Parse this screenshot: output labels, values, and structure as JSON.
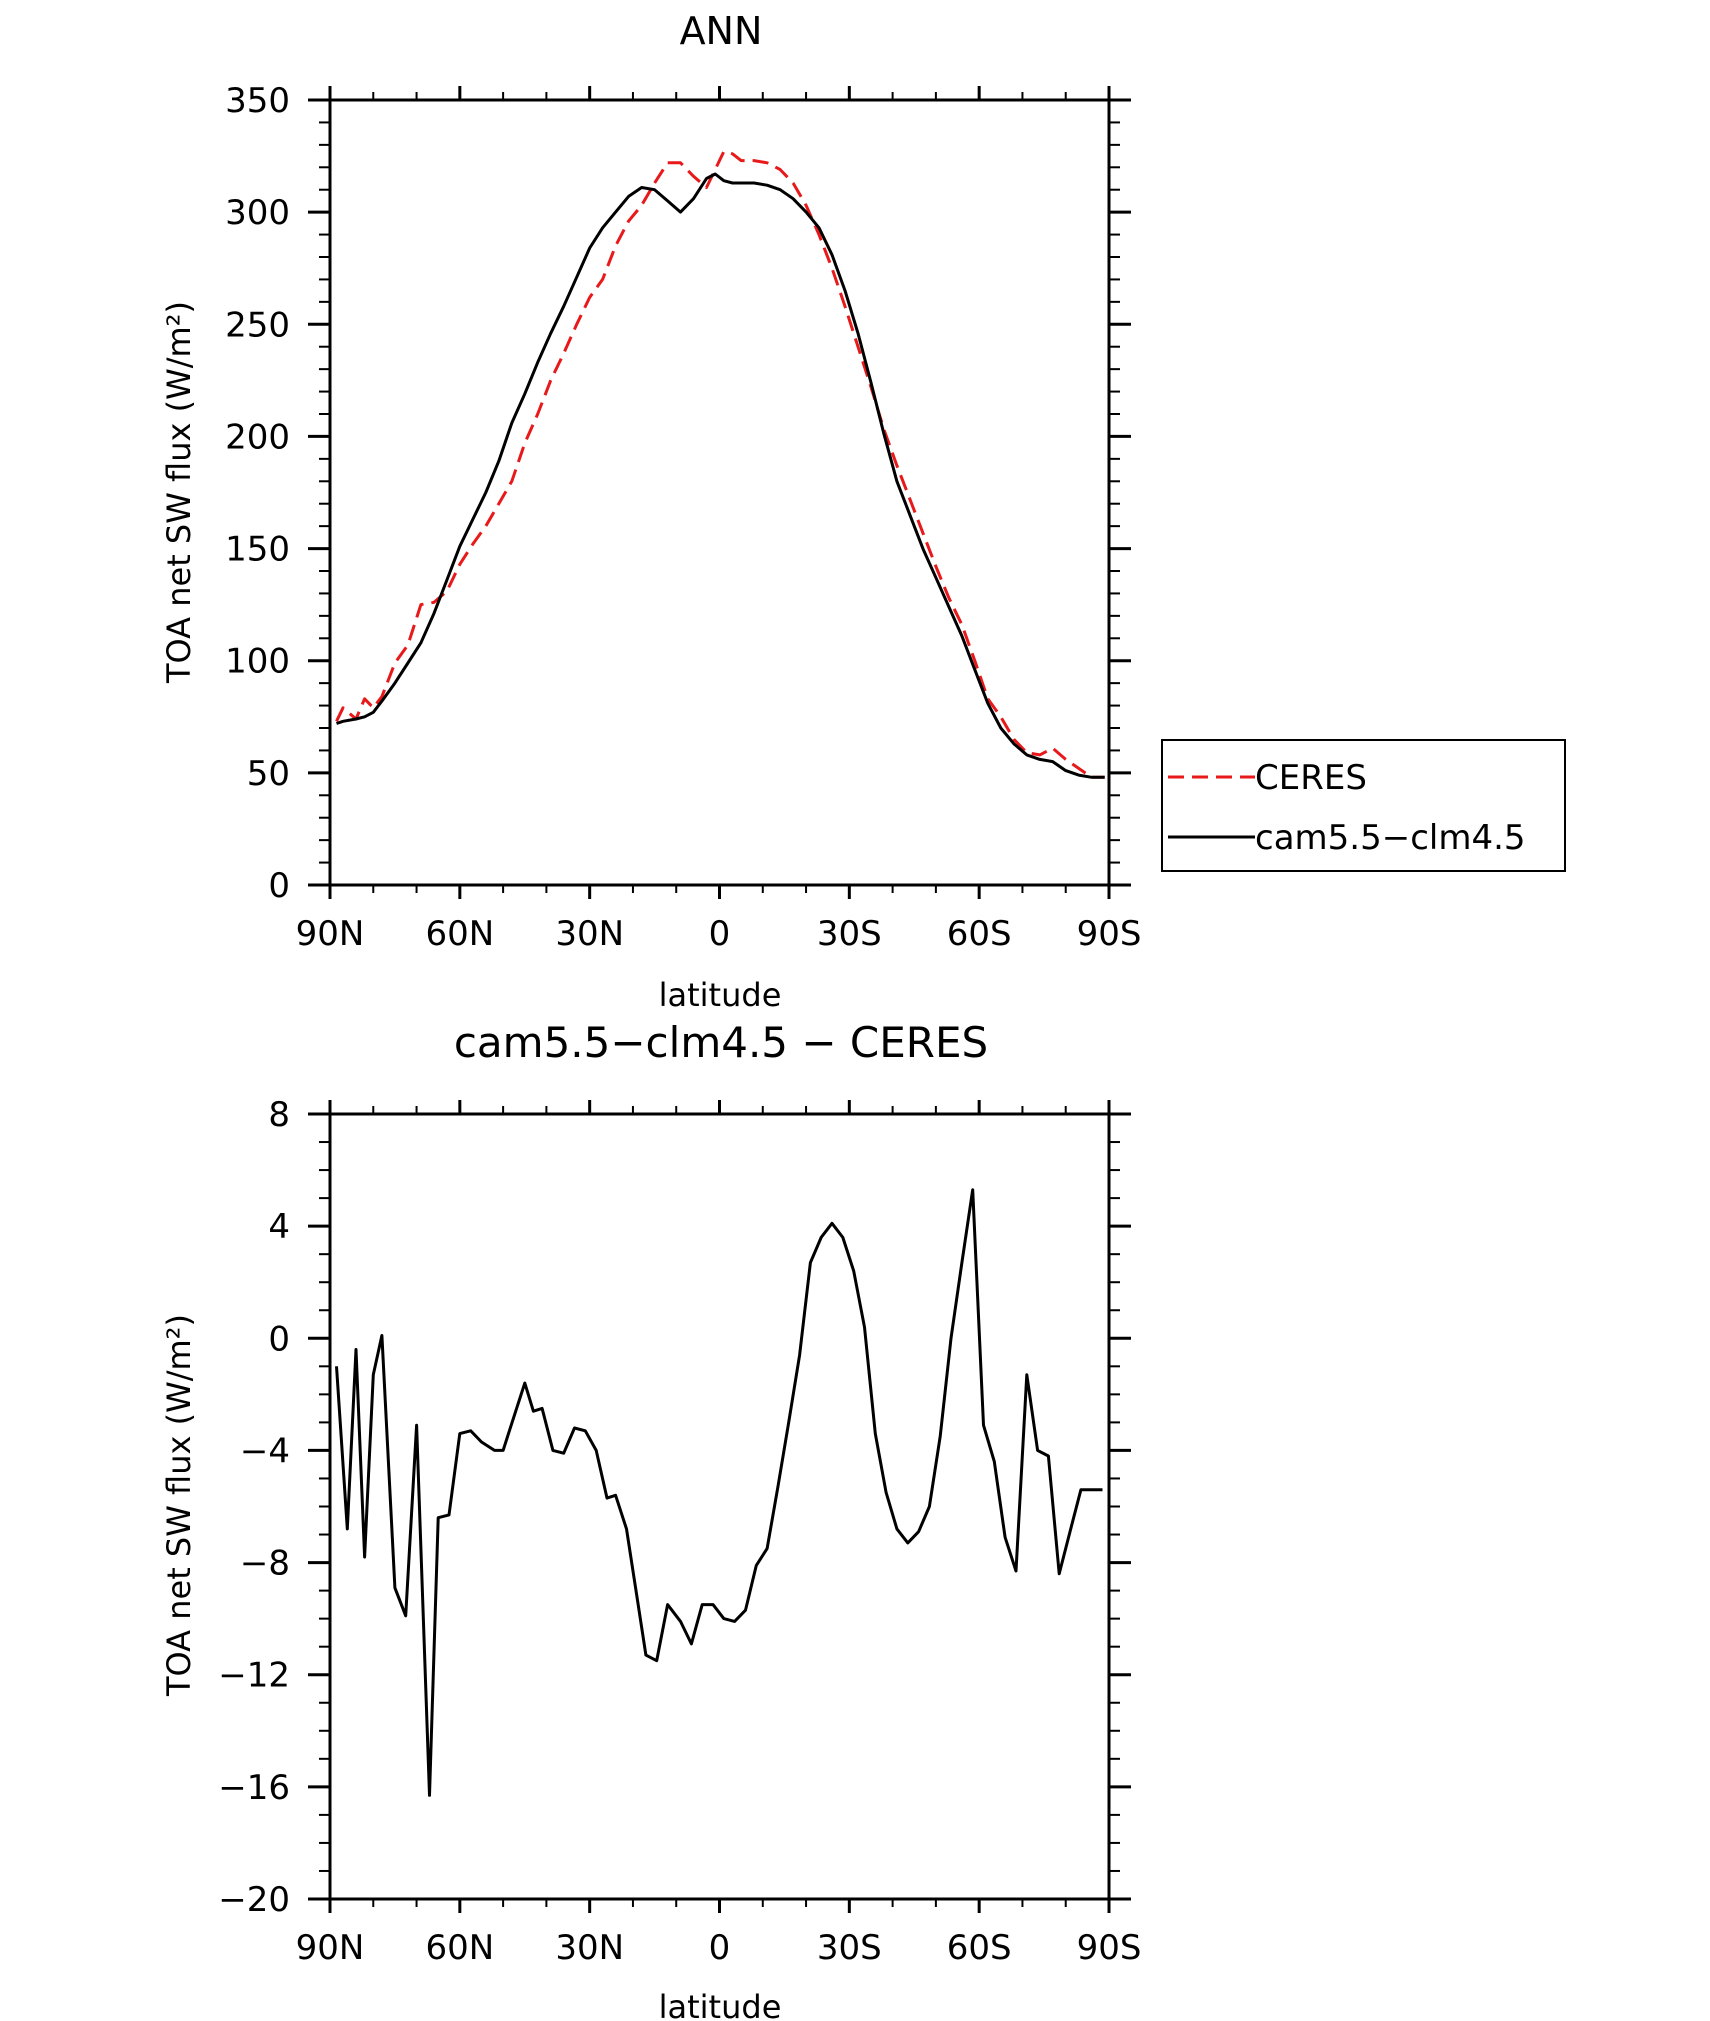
{
  "chart_data": [
    {
      "type": "line",
      "title": "ANN",
      "xlabel": "latitude",
      "ylabel": "TOA net SW flux (W/m²)",
      "x_ticks": [
        "90N",
        "60N",
        "30N",
        "0",
        "30S",
        "60S",
        "90S"
      ],
      "x_tick_values": [
        90,
        60,
        30,
        0,
        -30,
        -60,
        -90
      ],
      "y_ticks": [
        "0",
        "50",
        "100",
        "150",
        "200",
        "250",
        "300",
        "350"
      ],
      "y_tick_values": [
        0,
        50,
        100,
        150,
        200,
        250,
        300,
        350
      ],
      "xlim": [
        90,
        -90
      ],
      "ylim": [
        0,
        350
      ],
      "legend_placement": "right",
      "series": [
        {
          "name": "CERES",
          "color": "#e8191a",
          "dash": "dashed",
          "x": [
            88.5,
            87,
            84,
            82,
            80,
            78,
            75,
            72,
            69,
            66,
            63,
            60,
            57,
            54,
            51,
            48,
            45,
            42,
            39,
            36,
            33,
            30,
            27,
            24,
            21,
            18,
            15,
            12,
            9,
            6,
            3,
            1,
            -1,
            -3,
            -5,
            -8,
            -11,
            -14,
            -17,
            -20,
            -23,
            -26,
            -29,
            -32,
            -35,
            -38,
            -41,
            -44,
            -47,
            -50,
            -53,
            -56,
            -59,
            -62,
            -65,
            -68,
            -71,
            -74,
            -77,
            -80,
            -83,
            -86,
            -89
          ],
          "y": [
            73,
            79,
            74,
            83,
            79,
            84,
            99,
            107,
            125,
            126,
            131,
            143,
            152,
            160,
            170,
            180,
            197,
            210,
            225,
            237,
            250,
            262,
            270,
            285,
            296,
            303,
            313,
            322,
            322,
            316,
            311,
            319,
            327,
            326,
            323,
            323,
            322,
            319,
            313,
            303,
            290,
            275,
            258,
            240,
            222,
            203,
            187,
            172,
            157,
            142,
            128,
            116,
            100,
            83,
            75,
            65,
            59,
            58,
            61,
            56,
            52,
            48,
            48
          ]
        },
        {
          "name": "cam5.5−clm4.5",
          "color": "#000000",
          "dash": "solid",
          "x": [
            88.5,
            87,
            84,
            82,
            80,
            78,
            75,
            72,
            69,
            66,
            63,
            60,
            57,
            54,
            51,
            48,
            45,
            42,
            39,
            36,
            33,
            30,
            27,
            24,
            21,
            18,
            15,
            12,
            9,
            6,
            3,
            1,
            -1,
            -3,
            -5,
            -8,
            -11,
            -14,
            -17,
            -20,
            -23,
            -26,
            -29,
            -32,
            -35,
            -38,
            -41,
            -44,
            -47,
            -50,
            -53,
            -56,
            -59,
            -62,
            -65,
            -68,
            -71,
            -74,
            -77,
            -80,
            -83,
            -86,
            -89
          ],
          "y": [
            72,
            73,
            74,
            75,
            77,
            82,
            90,
            99,
            108,
            121,
            136,
            151,
            163,
            175,
            189,
            206,
            219,
            233,
            246,
            258,
            271,
            284,
            293,
            300,
            307,
            311,
            310,
            305,
            300,
            306,
            315,
            317,
            314,
            313,
            313,
            313,
            312,
            310,
            306,
            300,
            293,
            281,
            265,
            246,
            224,
            201,
            180,
            165,
            150,
            137,
            124,
            111,
            96,
            81,
            70,
            63,
            58,
            56,
            55,
            51,
            49,
            48,
            48
          ]
        }
      ]
    },
    {
      "type": "line",
      "title": "cam5.5−clm4.5 − CERES",
      "xlabel": "latitude",
      "ylabel": "TOA net SW flux (W/m²)",
      "x_ticks": [
        "90N",
        "60N",
        "30N",
        "0",
        "30S",
        "60S",
        "90S"
      ],
      "x_tick_values": [
        90,
        60,
        30,
        0,
        -30,
        -60,
        -90
      ],
      "y_ticks": [
        "8",
        "4",
        "0",
        "−4",
        "−8",
        "−12",
        "−16",
        "−20"
      ],
      "y_tick_values": [
        8,
        4,
        0,
        -4,
        -8,
        -12,
        -16,
        -20
      ],
      "xlim": [
        90,
        -90
      ],
      "ylim": [
        -20,
        8
      ],
      "series": [
        {
          "color": "#000000",
          "x": [
            88.5,
            86,
            84,
            82,
            80,
            78,
            75,
            72.5,
            70,
            67,
            65,
            62.5,
            60,
            57.5,
            55,
            52,
            50,
            47.5,
            45,
            43,
            41,
            38.5,
            36,
            33.5,
            31,
            28.5,
            26,
            24,
            21.5,
            19,
            17,
            14.5,
            12,
            9,
            6.5,
            4,
            1.5,
            -1,
            -3.5,
            -6,
            -8.5,
            -11,
            -13.5,
            -16,
            -18.5,
            -21,
            -23.5,
            -26,
            -28.5,
            -31,
            -33.5,
            -36,
            -38.5,
            -41,
            -43.5,
            -46,
            -48.5,
            -51,
            -53.5,
            -56,
            -58.5,
            -61,
            -63.5,
            -66,
            -68.5,
            -71,
            -73.5,
            -76,
            -78.5,
            -81,
            -83.5,
            -86,
            -88.5
          ],
          "y": [
            -1,
            -6.8,
            -0.4,
            -7.8,
            -1.3,
            0.1,
            -8.9,
            -9.9,
            -3.1,
            -16.3,
            -6.4,
            -6.3,
            -3.4,
            -3.3,
            -3.7,
            -4,
            -4,
            -2.8,
            -1.6,
            -2.6,
            -2.5,
            -4,
            -4.1,
            -3.2,
            -3.3,
            -4,
            -5.7,
            -5.6,
            -6.8,
            -9.3,
            -11.3,
            -11.5,
            -9.5,
            -10.1,
            -10.9,
            -9.5,
            -9.5,
            -10,
            -10.1,
            -9.7,
            -8.1,
            -7.5,
            -5.3,
            -3,
            -0.6,
            2.7,
            3.6,
            4.1,
            3.6,
            2.4,
            0.4,
            -3.4,
            -5.5,
            -6.8,
            -7.3,
            -6.9,
            -6,
            -3.5,
            0,
            2.7,
            5.3,
            -3.1,
            -4.4,
            -7.1,
            -8.3,
            -1.3,
            -4,
            -4.2,
            -8.4,
            -6.9,
            -5.4,
            -5.4,
            -5.4
          ]
        }
      ]
    }
  ]
}
